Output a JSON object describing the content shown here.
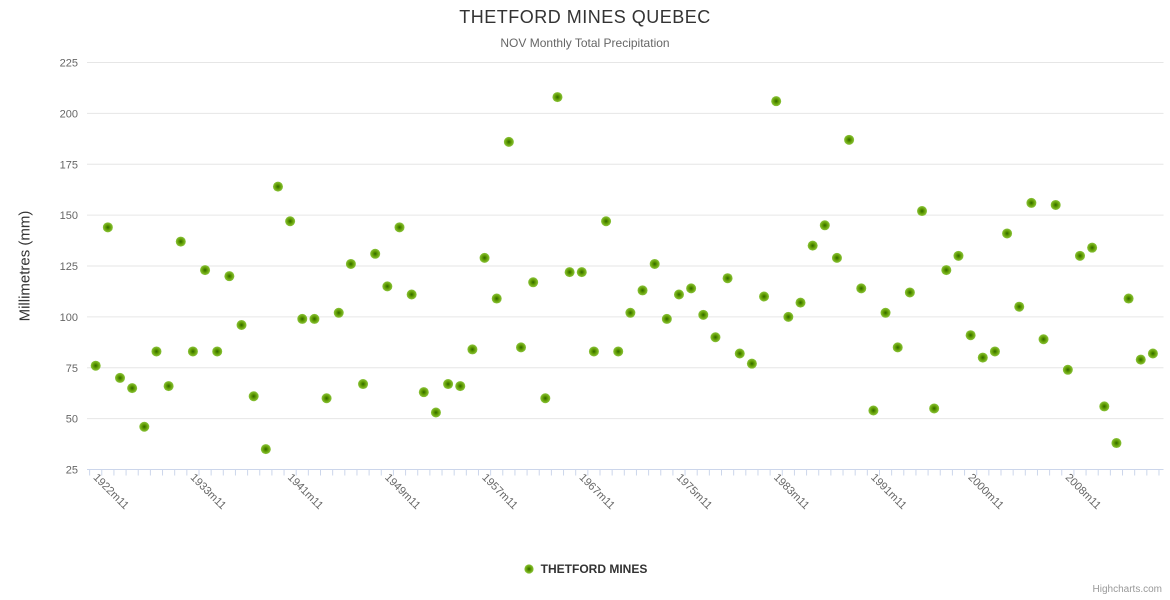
{
  "title": "THETFORD MINES QUEBEC",
  "subtitle": "NOV Monthly Total Precipitation",
  "y_axis": {
    "title": "Millimetres (mm)"
  },
  "legend": {
    "label": "THETFORD MINES"
  },
  "credit": "Highcharts.com",
  "colors": {
    "marker_edge": "#8bc43c",
    "marker_mid": "#5f9b00",
    "marker_core": "#2e6500",
    "grid_line": "#e6e6e6",
    "axis_line": "#ccd6eb",
    "tick_mark": "#ccd6eb",
    "axis_label_text": "#666666",
    "title_text": "#333333",
    "subtitle_text": "#666666",
    "credit_text": "#999999"
  },
  "chart_data": {
    "type": "scatter",
    "title": "THETFORD MINES QUEBEC",
    "subtitle": "NOV Monthly Total Precipitation",
    "xlabel": "",
    "ylabel": "Millimetres (mm)",
    "ylim": [
      25,
      225
    ],
    "y_tick_interval": 25,
    "grid": true,
    "legend_position": "bottom-center",
    "marker": {
      "shape": "circle",
      "radius": 5
    },
    "x_tick_labels": [
      {
        "at_point_index": 0,
        "label": "1922m11"
      },
      {
        "at_point_index": 8,
        "label": "1933m11"
      },
      {
        "at_point_index": 16,
        "label": "1941m11"
      },
      {
        "at_point_index": 24,
        "label": "1949m11"
      },
      {
        "at_point_index": 32,
        "label": "1957m11"
      },
      {
        "at_point_index": 40,
        "label": "1967m11"
      },
      {
        "at_point_index": 48,
        "label": "1975m11"
      },
      {
        "at_point_index": 56,
        "label": "1983m11"
      },
      {
        "at_point_index": 64,
        "label": "1991m11"
      },
      {
        "at_point_index": 72,
        "label": "2000m11"
      },
      {
        "at_point_index": 80,
        "label": "2008m11"
      }
    ],
    "series": [
      {
        "name": "THETFORD MINES",
        "color": "#73a818",
        "points_count": 88,
        "values": [
          76,
          144,
          70,
          65,
          46,
          83,
          66,
          137,
          83,
          123,
          83,
          120,
          96,
          61,
          35,
          164,
          147,
          99,
          99,
          60,
          102,
          126,
          67,
          131,
          115,
          144,
          111,
          63,
          53,
          67,
          66,
          84,
          129,
          109,
          186,
          85,
          117,
          60,
          208,
          122,
          122,
          83,
          147,
          83,
          102,
          113,
          126,
          99,
          111,
          114,
          101,
          90,
          119,
          82,
          77,
          110,
          206,
          100,
          107,
          135,
          145,
          129,
          187,
          114,
          54,
          102,
          85,
          112,
          152,
          55,
          123,
          130,
          91,
          80,
          83,
          141,
          105,
          156,
          89,
          155,
          74,
          130,
          134,
          56,
          38,
          109,
          79,
          82
        ]
      }
    ]
  }
}
